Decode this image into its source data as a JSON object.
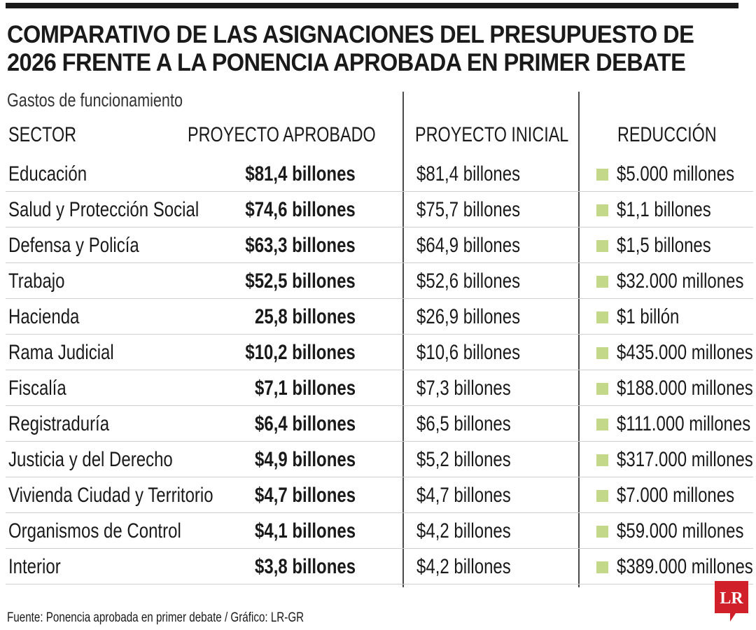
{
  "title": {
    "line1": "COMPARATIVO DE LAS ASIGNACIONES DEL PRESUPUESTO DE",
    "line2": "2026 FRENTE A LA PONENCIA APROBADA EN PRIMER DEBATE"
  },
  "subtitle": "Gastos de funcionamiento",
  "headers": {
    "sector": "SECTOR",
    "aprobado": "PROYECTO APROBADO",
    "inicial": "PROYECTO INICIAL",
    "reduccion": "REDUCCIÓN"
  },
  "rows": [
    {
      "sector": "Educación",
      "aprobado": "$81,4 billones",
      "inicial": "$81,4 billones",
      "reduccion": "$5.000 millones"
    },
    {
      "sector": "Salud y Protección Social",
      "aprobado": "$74,6 billones",
      "inicial": "$75,7 billones",
      "reduccion": "$1,1 billones"
    },
    {
      "sector": "Defensa y Policía",
      "aprobado": "$63,3 billones",
      "inicial": "$64,9 billones",
      "reduccion": "$1,5 billones"
    },
    {
      "sector": "Trabajo",
      "aprobado": "$52,5 billones",
      "inicial": "$52,6 billones",
      "reduccion": "$32.000 millones"
    },
    {
      "sector": "Hacienda",
      "aprobado": "25,8 billones",
      "inicial": "$26,9 billones",
      "reduccion": "$1 billón"
    },
    {
      "sector": "Rama Judicial",
      "aprobado": "$10,2 billones",
      "inicial": "$10,6 billones",
      "reduccion": "$435.000 millones"
    },
    {
      "sector": "Fiscalía",
      "aprobado": "$7,1 billones",
      "inicial": "$7,3 billones",
      "reduccion": "$188.000 millones"
    },
    {
      "sector": "Registraduría",
      "aprobado": "$6,4 billones",
      "inicial": "$6,5 billones",
      "reduccion": "$111.000 millones"
    },
    {
      "sector": "Justicia y del Derecho",
      "aprobado": "$4,9 billones",
      "inicial": "$5,2 billones",
      "reduccion": "$317.000 millones"
    },
    {
      "sector": "Vivienda Ciudad y Territorio",
      "aprobado": "$4,7 billones",
      "inicial": "$4,7 billones",
      "reduccion": "$7.000 millones"
    },
    {
      "sector": "Organismos de Control",
      "aprobado": "$4,1 billones",
      "inicial": "$4,2 billones",
      "reduccion": "$59.000 millones"
    },
    {
      "sector": "Interior",
      "aprobado": "$3,8 billones",
      "inicial": "$4,2 billones",
      "reduccion": "$389.000 millones"
    }
  ],
  "source": "Fuente: Ponencia aprobada en primer debate / Gráfico: LR-GR",
  "logo": {
    "text": "LR",
    "color": "#d0202a"
  },
  "colors": {
    "swatch": "#c3d989",
    "rule": "#1a1a1a"
  }
}
